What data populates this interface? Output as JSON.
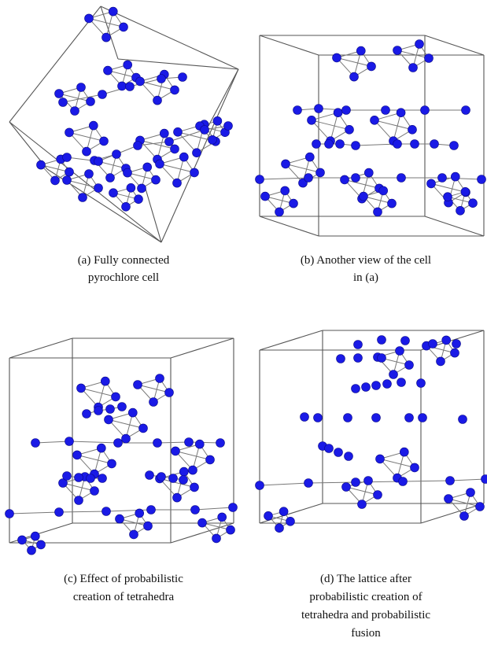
{
  "subfigures": [
    {
      "caption_lines": [
        "(a) Fully connected",
        "pyrochlore cell"
      ]
    },
    {
      "caption_lines": [
        "(b) Another view of the cell",
        "in (a)"
      ]
    },
    {
      "caption_lines": [
        "(c) Effect of probabilistic",
        "creation of tetrahedra"
      ]
    },
    {
      "caption_lines": [
        "(d) The lattice after",
        "probabilistic creation of",
        "tetrahedra and probabilistic",
        "fusion"
      ]
    }
  ]
}
